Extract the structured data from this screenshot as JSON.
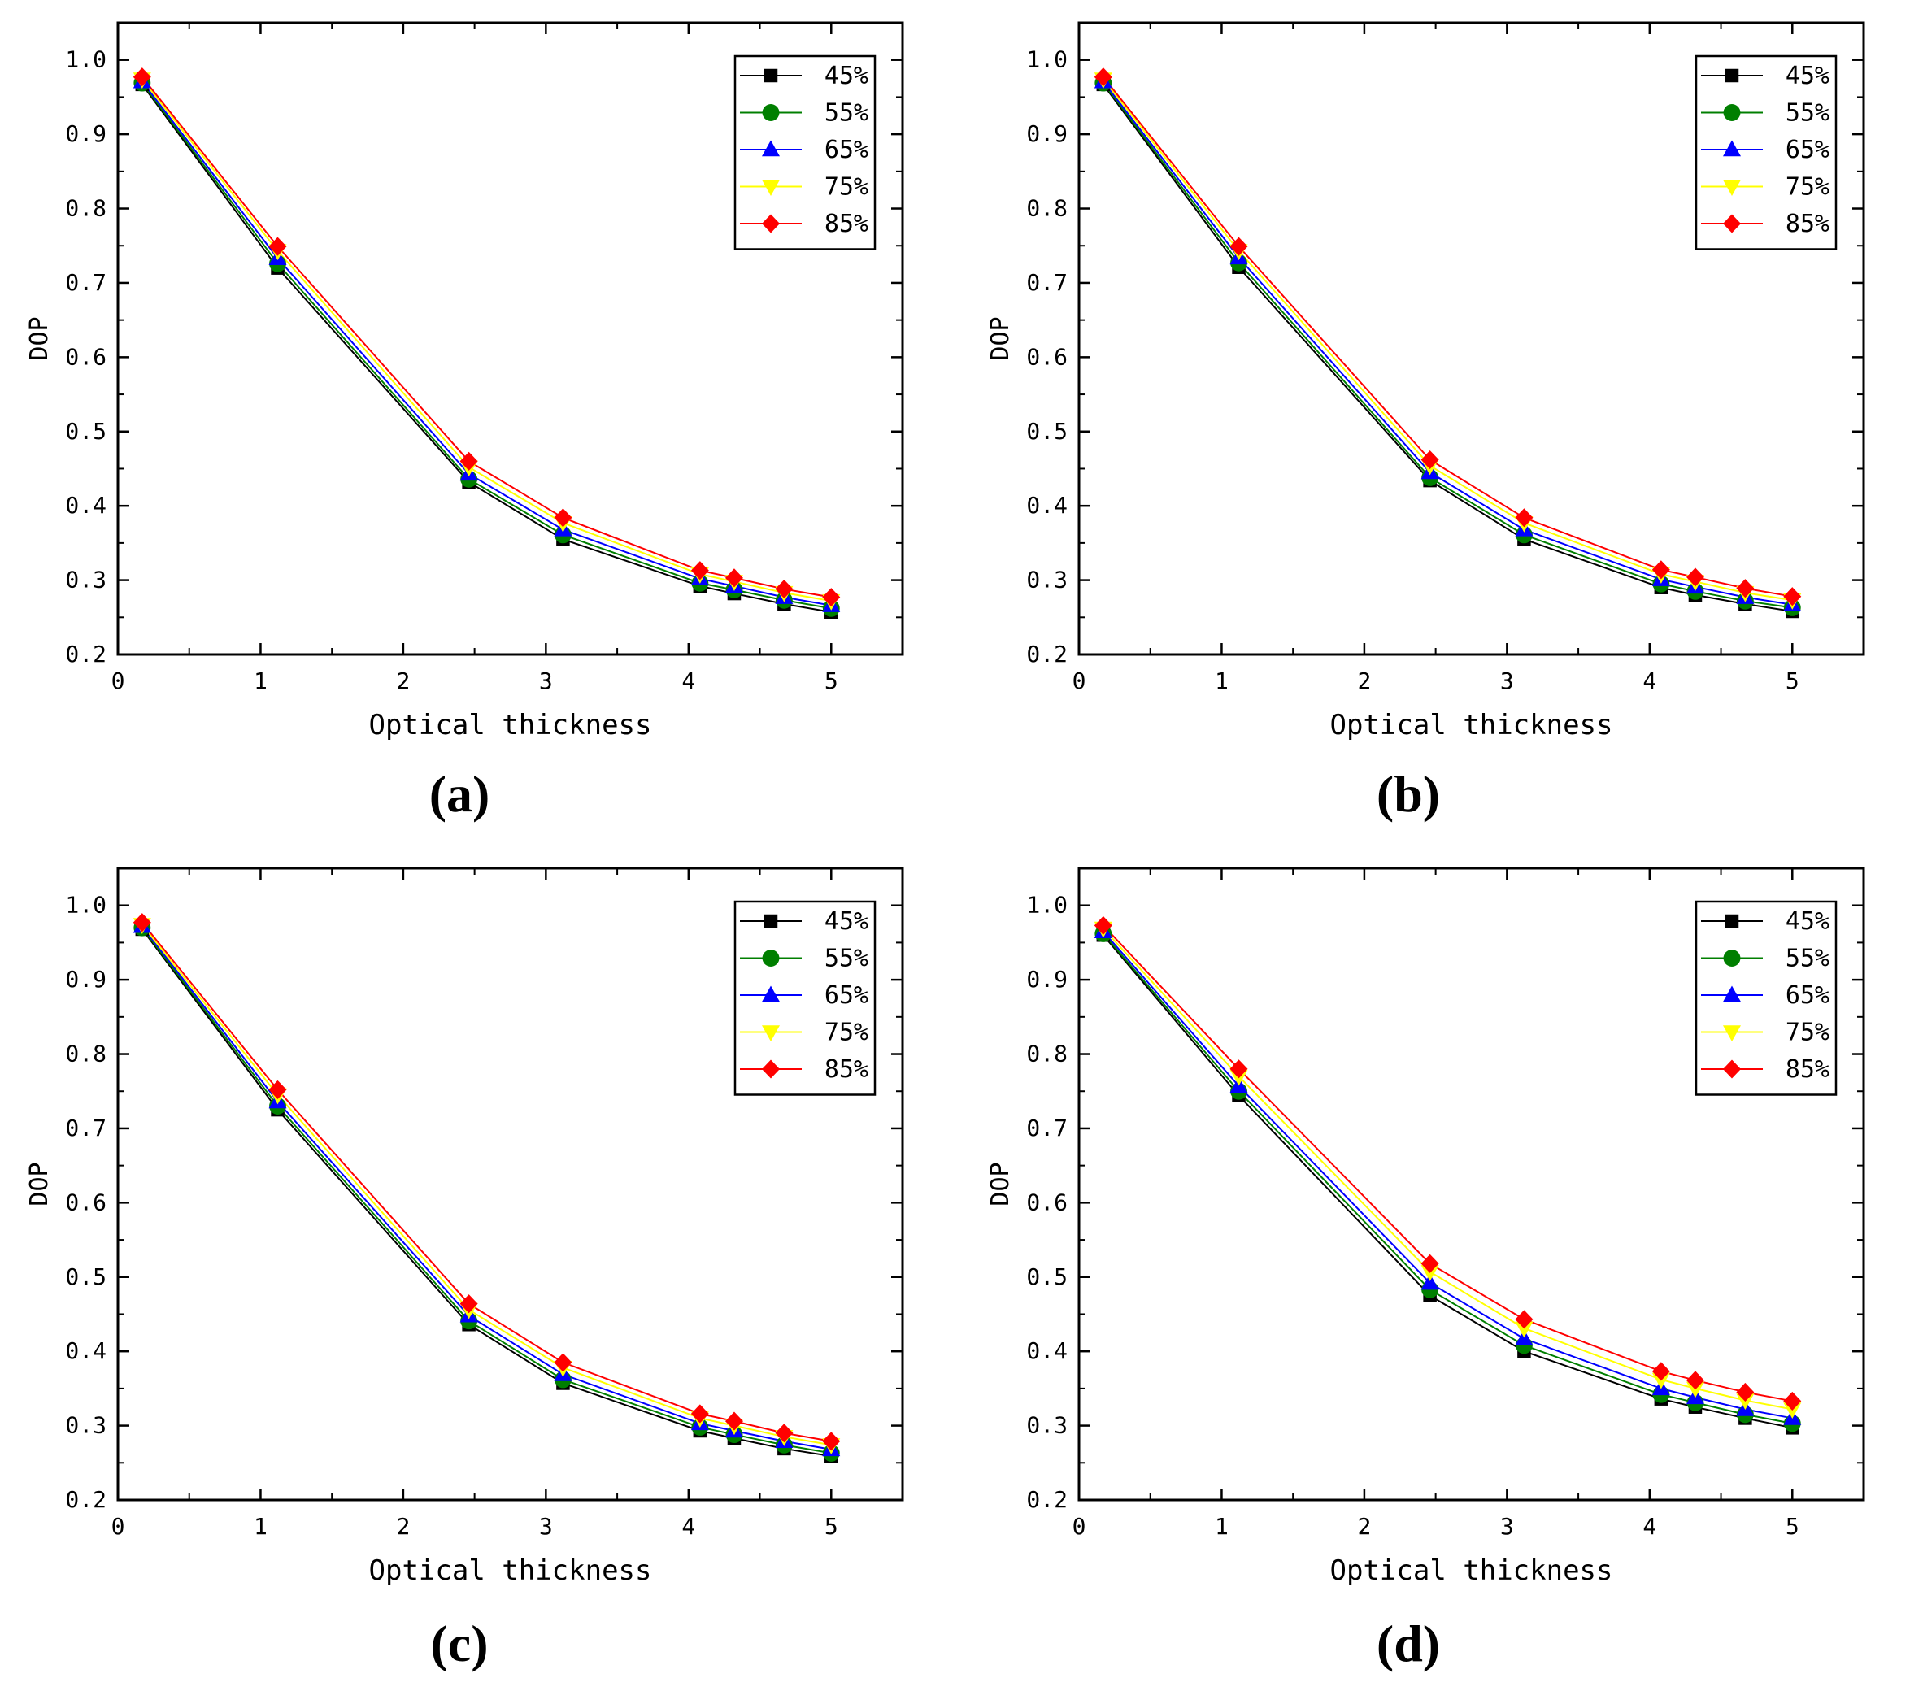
{
  "chart_data": [
    {
      "type": "line",
      "panel_label": "(a)",
      "xlabel": "Optical thickness",
      "ylabel": "DOP",
      "xlim": [
        0,
        5.5
      ],
      "ylim": [
        0.2,
        1.05
      ],
      "xticks": [
        "0",
        "1",
        "2",
        "3",
        "4",
        "5"
      ],
      "yticks": [
        "0.2",
        "0.3",
        "0.4",
        "0.5",
        "0.6",
        "0.7",
        "0.8",
        "0.9",
        "1.0"
      ],
      "legend_position": "top-right",
      "x": [
        0.17,
        1.12,
        2.46,
        3.12,
        4.08,
        4.32,
        4.67,
        5.0
      ],
      "series": [
        {
          "name": "45%",
          "color": "#000000",
          "marker": "square",
          "values": [
            0.967,
            0.72,
            0.432,
            0.355,
            0.292,
            0.282,
            0.268,
            0.257
          ]
        },
        {
          "name": "55%",
          "color": "#007f00",
          "marker": "circle",
          "values": [
            0.969,
            0.726,
            0.436,
            0.361,
            0.296,
            0.287,
            0.273,
            0.262
          ]
        },
        {
          "name": "65%",
          "color": "#0000ff",
          "marker": "triangle-up",
          "values": [
            0.971,
            0.733,
            0.443,
            0.368,
            0.302,
            0.292,
            0.277,
            0.266
          ]
        },
        {
          "name": "75%",
          "color": "#ffff00",
          "marker": "triangle-down",
          "values": [
            0.974,
            0.743,
            0.452,
            0.377,
            0.308,
            0.298,
            0.283,
            0.272
          ]
        },
        {
          "name": "85%",
          "color": "#ff0000",
          "marker": "diamond",
          "values": [
            0.977,
            0.749,
            0.46,
            0.384,
            0.313,
            0.303,
            0.288,
            0.277
          ]
        }
      ]
    },
    {
      "type": "line",
      "panel_label": "(b)",
      "xlabel": "Optical thickness",
      "ylabel": "DOP",
      "xlim": [
        0,
        5.5
      ],
      "ylim": [
        0.2,
        1.05
      ],
      "xticks": [
        "0",
        "1",
        "2",
        "3",
        "4",
        "5"
      ],
      "yticks": [
        "0.2",
        "0.3",
        "0.4",
        "0.5",
        "0.6",
        "0.7",
        "0.8",
        "0.9",
        "1.0"
      ],
      "legend_position": "top-right",
      "x": [
        0.17,
        1.12,
        2.46,
        3.12,
        4.08,
        4.32,
        4.67,
        5.0
      ],
      "series": [
        {
          "name": "45%",
          "color": "#000000",
          "marker": "square",
          "values": [
            0.967,
            0.721,
            0.434,
            0.355,
            0.29,
            0.28,
            0.268,
            0.258
          ]
        },
        {
          "name": "55%",
          "color": "#007f00",
          "marker": "circle",
          "values": [
            0.969,
            0.727,
            0.438,
            0.361,
            0.295,
            0.285,
            0.272,
            0.263
          ]
        },
        {
          "name": "65%",
          "color": "#0000ff",
          "marker": "triangle-up",
          "values": [
            0.971,
            0.734,
            0.445,
            0.368,
            0.301,
            0.291,
            0.277,
            0.267
          ]
        },
        {
          "name": "75%",
          "color": "#ffff00",
          "marker": "triangle-down",
          "values": [
            0.974,
            0.743,
            0.454,
            0.377,
            0.308,
            0.298,
            0.283,
            0.273
          ]
        },
        {
          "name": "85%",
          "color": "#ff0000",
          "marker": "diamond",
          "values": [
            0.977,
            0.749,
            0.462,
            0.384,
            0.314,
            0.304,
            0.289,
            0.278
          ]
        }
      ]
    },
    {
      "type": "line",
      "panel_label": "(c)",
      "xlabel": "Optical thickness",
      "ylabel": "DOP",
      "xlim": [
        0,
        5.5
      ],
      "ylim": [
        0.2,
        1.05
      ],
      "xticks": [
        "0",
        "1",
        "2",
        "3",
        "4",
        "5"
      ],
      "yticks": [
        "0.2",
        "0.3",
        "0.4",
        "0.5",
        "0.6",
        "0.7",
        "0.8",
        "0.9",
        "1.0"
      ],
      "legend_position": "top-right",
      "x": [
        0.17,
        1.12,
        2.46,
        3.12,
        4.08,
        4.32,
        4.67,
        5.0
      ],
      "series": [
        {
          "name": "45%",
          "color": "#000000",
          "marker": "square",
          "values": [
            0.968,
            0.725,
            0.436,
            0.357,
            0.293,
            0.283,
            0.269,
            0.259
          ]
        },
        {
          "name": "55%",
          "color": "#007f00",
          "marker": "circle",
          "values": [
            0.97,
            0.73,
            0.441,
            0.362,
            0.298,
            0.288,
            0.274,
            0.263
          ]
        },
        {
          "name": "65%",
          "color": "#0000ff",
          "marker": "triangle-up",
          "values": [
            0.972,
            0.736,
            0.448,
            0.369,
            0.303,
            0.293,
            0.279,
            0.268
          ]
        },
        {
          "name": "75%",
          "color": "#ffff00",
          "marker": "triangle-down",
          "values": [
            0.974,
            0.745,
            0.456,
            0.378,
            0.31,
            0.3,
            0.285,
            0.274
          ]
        },
        {
          "name": "85%",
          "color": "#ff0000",
          "marker": "diamond",
          "values": [
            0.977,
            0.752,
            0.464,
            0.385,
            0.316,
            0.306,
            0.29,
            0.279
          ]
        }
      ]
    },
    {
      "type": "line",
      "panel_label": "(d)",
      "xlabel": "Optical thickness",
      "ylabel": "DOP",
      "xlim": [
        0,
        5.5
      ],
      "ylim": [
        0.2,
        1.05
      ],
      "xticks": [
        "0",
        "1",
        "2",
        "3",
        "4",
        "5"
      ],
      "yticks": [
        "0.2",
        "0.3",
        "0.4",
        "0.5",
        "0.6",
        "0.7",
        "0.8",
        "0.9",
        "1.0"
      ],
      "legend_position": "top-right",
      "x": [
        0.17,
        1.12,
        2.46,
        3.12,
        4.08,
        4.32,
        4.67,
        5.0
      ],
      "series": [
        {
          "name": "45%",
          "color": "#000000",
          "marker": "square",
          "values": [
            0.96,
            0.744,
            0.475,
            0.4,
            0.336,
            0.325,
            0.31,
            0.297
          ]
        },
        {
          "name": "55%",
          "color": "#007f00",
          "marker": "circle",
          "values": [
            0.962,
            0.75,
            0.483,
            0.408,
            0.342,
            0.331,
            0.315,
            0.303
          ]
        },
        {
          "name": "65%",
          "color": "#0000ff",
          "marker": "triangle-up",
          "values": [
            0.965,
            0.757,
            0.492,
            0.417,
            0.35,
            0.338,
            0.322,
            0.31
          ]
        },
        {
          "name": "75%",
          "color": "#ffff00",
          "marker": "triangle-down",
          "values": [
            0.969,
            0.77,
            0.507,
            0.431,
            0.362,
            0.35,
            0.334,
            0.322
          ]
        },
        {
          "name": "85%",
          "color": "#ff0000",
          "marker": "diamond",
          "values": [
            0.973,
            0.78,
            0.518,
            0.443,
            0.373,
            0.361,
            0.345,
            0.333
          ]
        }
      ]
    }
  ]
}
